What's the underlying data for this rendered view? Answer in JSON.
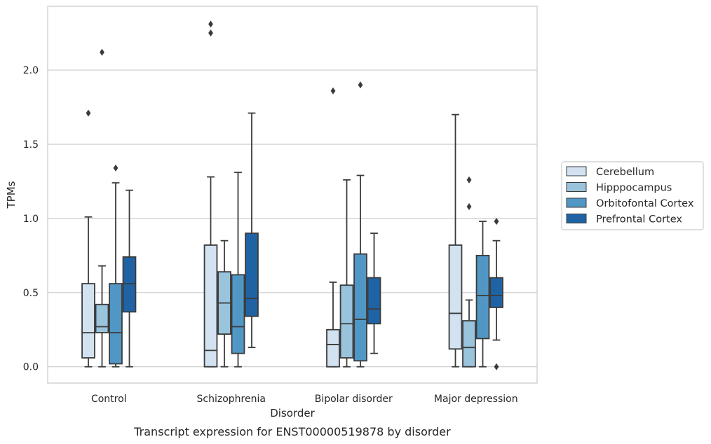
{
  "caption": "Transcript expression for ENST00000519878 by disorder",
  "chart_data": {
    "type": "box",
    "xlabel": "Disorder",
    "ylabel": "TPMs",
    "ylim": [
      -0.11,
      2.43
    ],
    "yticks": [
      "0.0",
      "0.5",
      "1.0",
      "1.5",
      "2.0"
    ],
    "grid": "horizontal",
    "legend_position": "right",
    "categories": [
      "Control",
      "Schizophrenia",
      "Bipolar disorder",
      "Major depression"
    ],
    "series": [
      {
        "name": "Cerebellum",
        "color": "#d2e2f1",
        "boxes": [
          {
            "whislo": 0.0,
            "q1": 0.06,
            "med": 0.23,
            "q3": 0.56,
            "whishi": 1.01,
            "fliers": [
              1.71
            ]
          },
          {
            "whislo": 0.0,
            "q1": 0.0,
            "med": 0.11,
            "q3": 0.82,
            "whishi": 1.28,
            "fliers": [
              2.25,
              2.31
            ]
          },
          {
            "whislo": 0.0,
            "q1": 0.0,
            "med": 0.15,
            "q3": 0.25,
            "whishi": 0.57,
            "fliers": [
              1.86
            ]
          },
          {
            "whislo": 0.0,
            "q1": 0.12,
            "med": 0.36,
            "q3": 0.82,
            "whishi": 1.7,
            "fliers": []
          }
        ]
      },
      {
        "name": "Hipppocampus",
        "color": "#9ac3dc",
        "boxes": [
          {
            "whislo": 0.0,
            "q1": 0.23,
            "med": 0.27,
            "q3": 0.42,
            "whishi": 0.68,
            "fliers": [
              2.12
            ]
          },
          {
            "whislo": 0.0,
            "q1": 0.22,
            "med": 0.43,
            "q3": 0.64,
            "whishi": 0.85,
            "fliers": []
          },
          {
            "whislo": 0.0,
            "q1": 0.06,
            "med": 0.29,
            "q3": 0.55,
            "whishi": 1.26,
            "fliers": []
          },
          {
            "whislo": 0.0,
            "q1": 0.0,
            "med": 0.13,
            "q3": 0.31,
            "whishi": 0.45,
            "fliers": [
              1.08,
              1.26
            ]
          }
        ]
      },
      {
        "name": "Orbitofontal Cortex",
        "color": "#5197c5",
        "boxes": [
          {
            "whislo": 0.0,
            "q1": 0.02,
            "med": 0.23,
            "q3": 0.56,
            "whishi": 1.24,
            "fliers": [
              1.34
            ]
          },
          {
            "whislo": 0.0,
            "q1": 0.09,
            "med": 0.27,
            "q3": 0.62,
            "whishi": 1.31,
            "fliers": []
          },
          {
            "whislo": 0.0,
            "q1": 0.04,
            "med": 0.32,
            "q3": 0.76,
            "whishi": 1.29,
            "fliers": [
              1.9
            ]
          },
          {
            "whislo": 0.0,
            "q1": 0.19,
            "med": 0.48,
            "q3": 0.75,
            "whishi": 0.98,
            "fliers": []
          }
        ]
      },
      {
        "name": "Prefrontal Cortex",
        "color": "#1f63a5",
        "boxes": [
          {
            "whislo": 0.0,
            "q1": 0.37,
            "med": 0.56,
            "q3": 0.74,
            "whishi": 1.19,
            "fliers": []
          },
          {
            "whislo": 0.13,
            "q1": 0.34,
            "med": 0.46,
            "q3": 0.9,
            "whishi": 1.71,
            "fliers": []
          },
          {
            "whislo": 0.09,
            "q1": 0.29,
            "med": 0.39,
            "q3": 0.6,
            "whishi": 0.9,
            "fliers": []
          },
          {
            "whislo": 0.18,
            "q1": 0.4,
            "med": 0.48,
            "q3": 0.6,
            "whishi": 0.85,
            "fliers": [
              0.0,
              0.98
            ]
          }
        ]
      }
    ]
  }
}
